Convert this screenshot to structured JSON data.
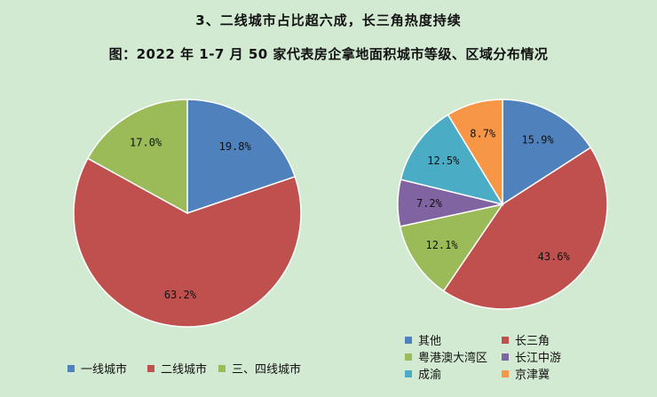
{
  "header": {
    "section_title": "3、二线城市占比超六成，长三角热度持续",
    "figure_title": "图：2022 年 1-7 月 50 家代表房企拿地面积城市等级、区域分布情况"
  },
  "chart_data": [
    {
      "type": "pie",
      "categories": [
        "一线城市",
        "二线城市",
        "三、四线城市"
      ],
      "values": [
        19.8,
        63.2,
        17.0
      ],
      "labels": [
        "19.8%",
        "63.2%",
        "17.0%"
      ],
      "colors": [
        "#4f81bd",
        "#c0504d",
        "#9bbb59"
      ],
      "legend": "bottom"
    },
    {
      "type": "pie",
      "categories": [
        "其他",
        "长三角",
        "粤港澳大湾区",
        "长江中游",
        "成渝",
        "京津冀"
      ],
      "values": [
        15.9,
        43.6,
        12.1,
        7.2,
        12.5,
        8.7
      ],
      "labels": [
        "15.9%",
        "43.6%",
        "12.1%",
        "7.2%",
        "12.5%",
        "8.7%"
      ],
      "colors": [
        "#4f81bd",
        "#c0504d",
        "#9bbb59",
        "#8064a2",
        "#4bacc6",
        "#f79646"
      ],
      "legend": "bottom"
    }
  ]
}
